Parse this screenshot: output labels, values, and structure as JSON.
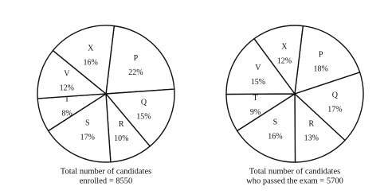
{
  "chart_data": [
    {
      "type": "pie",
      "categories": [
        "P",
        "Q",
        "R",
        "S",
        "T",
        "V",
        "X"
      ],
      "values": [
        22,
        15,
        10,
        17,
        8,
        12,
        16
      ],
      "value_labels": [
        "22%",
        "15%",
        "10%",
        "17%",
        "8%",
        "12%",
        "16%"
      ],
      "color": "#ffffff",
      "caption": [
        "Total number of candidates",
        "enrolled = 8550"
      ]
    },
    {
      "type": "pie",
      "categories": [
        "P",
        "Q",
        "R",
        "S",
        "T",
        "V",
        "X"
      ],
      "values": [
        18,
        17,
        13,
        16,
        9,
        15,
        12
      ],
      "value_labels": [
        "18%",
        "17%",
        "13%",
        "16%",
        "9%",
        "15%",
        "12%"
      ],
      "color": "#ffffff",
      "caption": [
        "Total number of candidates",
        "who passed the exam = 5700"
      ]
    }
  ]
}
